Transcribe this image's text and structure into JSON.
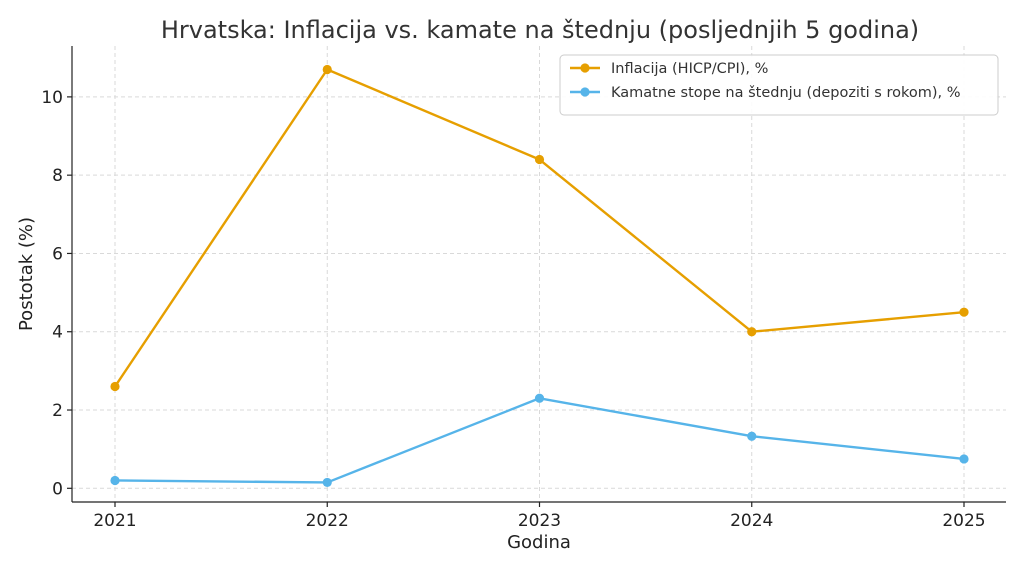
{
  "chart_data": {
    "type": "line",
    "title": "Hrvatska: Inflacija vs. kamate na štednju (posljednjih 5 godina)",
    "xlabel": "Godina",
    "ylabel": "Postotak (%)",
    "categories": [
      "2021",
      "2022",
      "2023",
      "2024",
      "2025"
    ],
    "y_ticks": [
      0,
      2,
      4,
      6,
      8,
      10
    ],
    "ylim": [
      -0.35,
      11.3
    ],
    "grid": true,
    "legend_position": "top-right",
    "series": [
      {
        "name": "Inflacija (HICP/CPI), %",
        "color": "#E69F00",
        "values": [
          2.6,
          10.7,
          8.4,
          4.0,
          4.5
        ]
      },
      {
        "name": "Kamatne stope na štednju (depoziti s rokom), %",
        "color": "#56B4E9",
        "values": [
          0.2,
          0.15,
          2.3,
          1.33,
          0.75
        ]
      }
    ]
  }
}
